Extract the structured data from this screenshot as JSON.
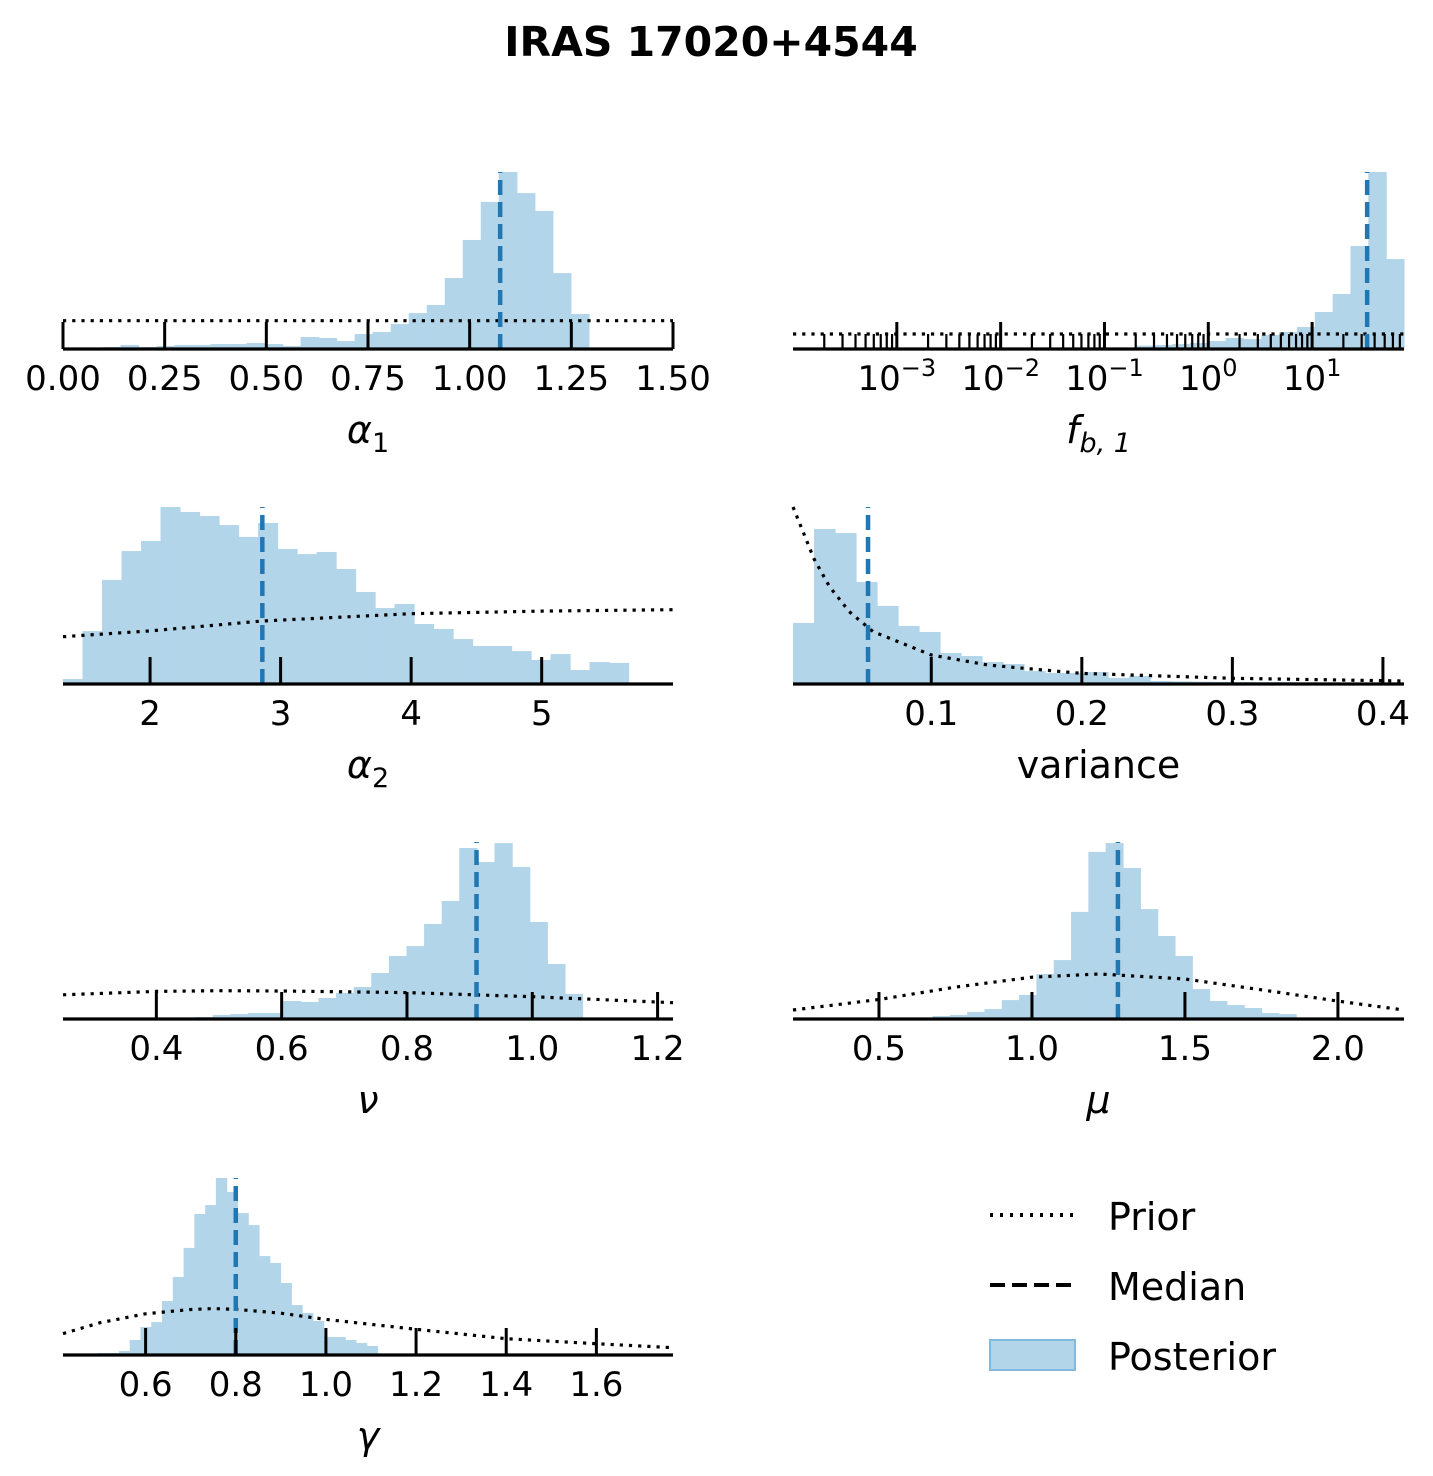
{
  "title": "IRAS 17020+4544",
  "colors": {
    "posterior": "#b3d5ea",
    "posterior_edge": "#82b9dc",
    "median": "#1f77b4",
    "prior": "#000000",
    "axis": "#000000"
  },
  "legend": {
    "placement": "bottom-right",
    "items": [
      {
        "label": "Prior",
        "style": "dotted"
      },
      {
        "label": "Median",
        "style": "dashed"
      },
      {
        "label": "Posterior",
        "style": "patch"
      }
    ]
  },
  "chart_data": [
    {
      "type": "bar",
      "name": "alpha1",
      "xlabel": {
        "main": "α",
        "sub": "1"
      },
      "xscale": "linear",
      "xlim": [
        0,
        1.5
      ],
      "ticks": [
        0,
        0.25,
        0.5,
        0.75,
        1.0,
        1.25,
        1.5
      ],
      "tick_labels": [
        "0.00",
        "0.25",
        "0.50",
        "0.75",
        "1.00",
        "1.25",
        "1.50"
      ],
      "bin_start": 0.097,
      "bin_width": 0.0443,
      "heights": [
        0.011,
        0.023,
        0.011,
        0.017,
        0.023,
        0.023,
        0.028,
        0.028,
        0.034,
        0.028,
        0.017,
        0.068,
        0.062,
        0.045,
        0.085,
        0.096,
        0.141,
        0.203,
        0.249,
        0.401,
        0.616,
        0.831,
        1.0,
        0.881,
        0.78,
        0.429,
        0.198
      ],
      "median": 1.075,
      "prior": [
        [
          0,
          0.16
        ],
        [
          1.5,
          0.16
        ]
      ]
    },
    {
      "type": "bar",
      "name": "fb1",
      "xlabel": {
        "main": "f",
        "sub": "b, 1"
      },
      "xscale": "log",
      "xlim": [
        -4.0,
        1.885
      ],
      "ticks": [
        -3,
        -2,
        -1,
        0,
        1
      ],
      "tick_labels": [
        {
          "base": "10",
          "exp": "−3"
        },
        {
          "base": "10",
          "exp": "−2"
        },
        {
          "base": "10",
          "exp": "−1"
        },
        {
          "base": "10",
          "exp": "0"
        },
        {
          "base": "10",
          "exp": "1"
        }
      ],
      "bin_start": -0.691,
      "bin_width": 0.1717,
      "heights": [
        0.019,
        0.023,
        0.028,
        0.034,
        0.045,
        0.062,
        0.056,
        0.079,
        0.096,
        0.124,
        0.209,
        0.311,
        0.582,
        1.0,
        0.508
      ],
      "median": 1.53,
      "prior": [
        [
          -4.0,
          0.085
        ],
        [
          1.885,
          0.085
        ]
      ]
    },
    {
      "type": "bar",
      "name": "alpha2",
      "xlabel": {
        "main": "α",
        "sub": "2"
      },
      "xscale": "linear",
      "xlim": [
        1.333,
        6.006
      ],
      "ticks": [
        2,
        3,
        4,
        5
      ],
      "tick_labels": [
        "2",
        "3",
        "4",
        "5"
      ],
      "bin_start": 1.333,
      "bin_width": 0.1494,
      "heights": [
        0.028,
        0.299,
        0.588,
        0.751,
        0.808,
        1.0,
        0.972,
        0.949,
        0.898,
        0.831,
        0.91,
        0.763,
        0.734,
        0.746,
        0.65,
        0.52,
        0.429,
        0.452,
        0.339,
        0.311,
        0.254,
        0.215,
        0.215,
        0.186,
        0.136,
        0.169,
        0.079,
        0.124,
        0.119
      ],
      "median": 2.86,
      "prior": [
        [
          1.333,
          0.267
        ],
        [
          2,
          0.3
        ],
        [
          2.86,
          0.356
        ],
        [
          4,
          0.397
        ],
        [
          5,
          0.412
        ],
        [
          6.006,
          0.42
        ]
      ]
    },
    {
      "type": "bar",
      "name": "variance",
      "xlabel": {
        "main": "variance",
        "sub": ""
      },
      "xscale": "linear",
      "xlim": [
        0.00816,
        0.414
      ],
      "ticks": [
        0.1,
        0.2,
        0.3,
        0.4
      ],
      "tick_labels": [
        "0.1",
        "0.2",
        "0.3",
        "0.4"
      ],
      "bin_start": 0.00816,
      "bin_width": 0.01395,
      "heights": [
        0.345,
        0.876,
        0.853,
        0.576,
        0.441,
        0.328,
        0.294,
        0.175,
        0.158,
        0.124,
        0.113,
        0.073,
        0.062,
        0.062,
        0.068,
        0.034,
        0.045,
        0.017,
        0.015,
        0.013,
        0.012,
        0.011,
        0.01,
        0.01,
        0.009,
        0.009,
        0.008,
        0.008,
        0.007
      ],
      "median": 0.058,
      "prior": [
        [
          0.00816,
          1.0
        ],
        [
          0.0166,
          0.823
        ],
        [
          0.0219,
          0.71
        ],
        [
          0.0324,
          0.55
        ],
        [
          0.0455,
          0.409
        ],
        [
          0.0613,
          0.296
        ],
        [
          0.1,
          0.164
        ],
        [
          0.138,
          0.107
        ],
        [
          0.2,
          0.06
        ],
        [
          0.3,
          0.032
        ],
        [
          0.414,
          0.017
        ]
      ]
    },
    {
      "type": "bar",
      "name": "nu",
      "xlabel": {
        "main": "ν",
        "sub": ""
      },
      "xscale": "linear",
      "xlim": [
        0.251,
        1.2246
      ],
      "ticks": [
        0.4,
        0.6,
        0.8,
        1.0,
        1.2
      ],
      "tick_labels": [
        "0.4",
        "0.6",
        "0.8",
        "1.0",
        "1.2"
      ],
      "bin_start": 0.462,
      "bin_width": 0.0281,
      "heights": [
        0.011,
        0.023,
        0.028,
        0.034,
        0.034,
        0.102,
        0.096,
        0.119,
        0.147,
        0.181,
        0.26,
        0.356,
        0.412,
        0.537,
        0.667,
        0.966,
        0.887,
        0.994,
        0.859,
        0.548,
        0.311,
        0.141
      ],
      "median": 0.911,
      "prior": [
        [
          0.251,
          0.137
        ],
        [
          0.4,
          0.156
        ],
        [
          0.5,
          0.16
        ],
        [
          0.6,
          0.158
        ],
        [
          0.8,
          0.149
        ],
        [
          1.0,
          0.126
        ],
        [
          1.2246,
          0.092
        ]
      ]
    },
    {
      "type": "bar",
      "name": "mu",
      "xlabel": {
        "main": "μ",
        "sub": ""
      },
      "xscale": "linear",
      "xlim": [
        0.219,
        2.216
      ],
      "ticks": [
        0.5,
        1.0,
        1.5,
        2.0
      ],
      "tick_labels": [
        "0.5",
        "1.0",
        "1.5",
        "2.0"
      ],
      "bin_start": 0.675,
      "bin_width": 0.0566,
      "heights": [
        0.017,
        0.023,
        0.04,
        0.056,
        0.107,
        0.136,
        0.254,
        0.333,
        0.605,
        0.944,
        0.994,
        0.853,
        0.621,
        0.469,
        0.356,
        0.169,
        0.102,
        0.079,
        0.062,
        0.034,
        0.028
      ],
      "median": 1.281,
      "prior": [
        [
          0.219,
          0.051
        ],
        [
          0.5,
          0.11
        ],
        [
          0.75,
          0.18
        ],
        [
          1.0,
          0.236
        ],
        [
          1.22,
          0.254
        ],
        [
          1.5,
          0.226
        ],
        [
          1.75,
          0.165
        ],
        [
          2.0,
          0.101
        ],
        [
          2.216,
          0.051
        ]
      ]
    },
    {
      "type": "bar",
      "name": "gamma",
      "xlabel": {
        "main": "γ",
        "sub": ""
      },
      "xscale": "linear",
      "xlim": [
        0.4167,
        1.77
      ],
      "ticks": [
        0.6,
        0.8,
        1.0,
        1.2,
        1.4,
        1.6
      ],
      "tick_labels": [
        "0.6",
        "0.8",
        "1.0",
        "1.2",
        "1.4",
        "1.6"
      ],
      "bin_start": 0.493,
      "bin_width": 0.0239,
      "heights": [
        0.011,
        0.011,
        0.023,
        0.085,
        0.158,
        0.186,
        0.305,
        0.441,
        0.605,
        0.797,
        0.847,
        1.0,
        0.921,
        0.802,
        0.734,
        0.559,
        0.52,
        0.407,
        0.282,
        0.237,
        0.192,
        0.102,
        0.102,
        0.085,
        0.068,
        0.051
      ],
      "median": 0.8,
      "prior": [
        [
          0.4167,
          0.121
        ],
        [
          0.5,
          0.183
        ],
        [
          0.6,
          0.233
        ],
        [
          0.7,
          0.257
        ],
        [
          0.75,
          0.262
        ],
        [
          0.8,
          0.258
        ],
        [
          0.9,
          0.236
        ],
        [
          1.0,
          0.201
        ],
        [
          1.2,
          0.145
        ],
        [
          1.4,
          0.092
        ],
        [
          1.6,
          0.064
        ],
        [
          1.77,
          0.041
        ]
      ]
    }
  ]
}
